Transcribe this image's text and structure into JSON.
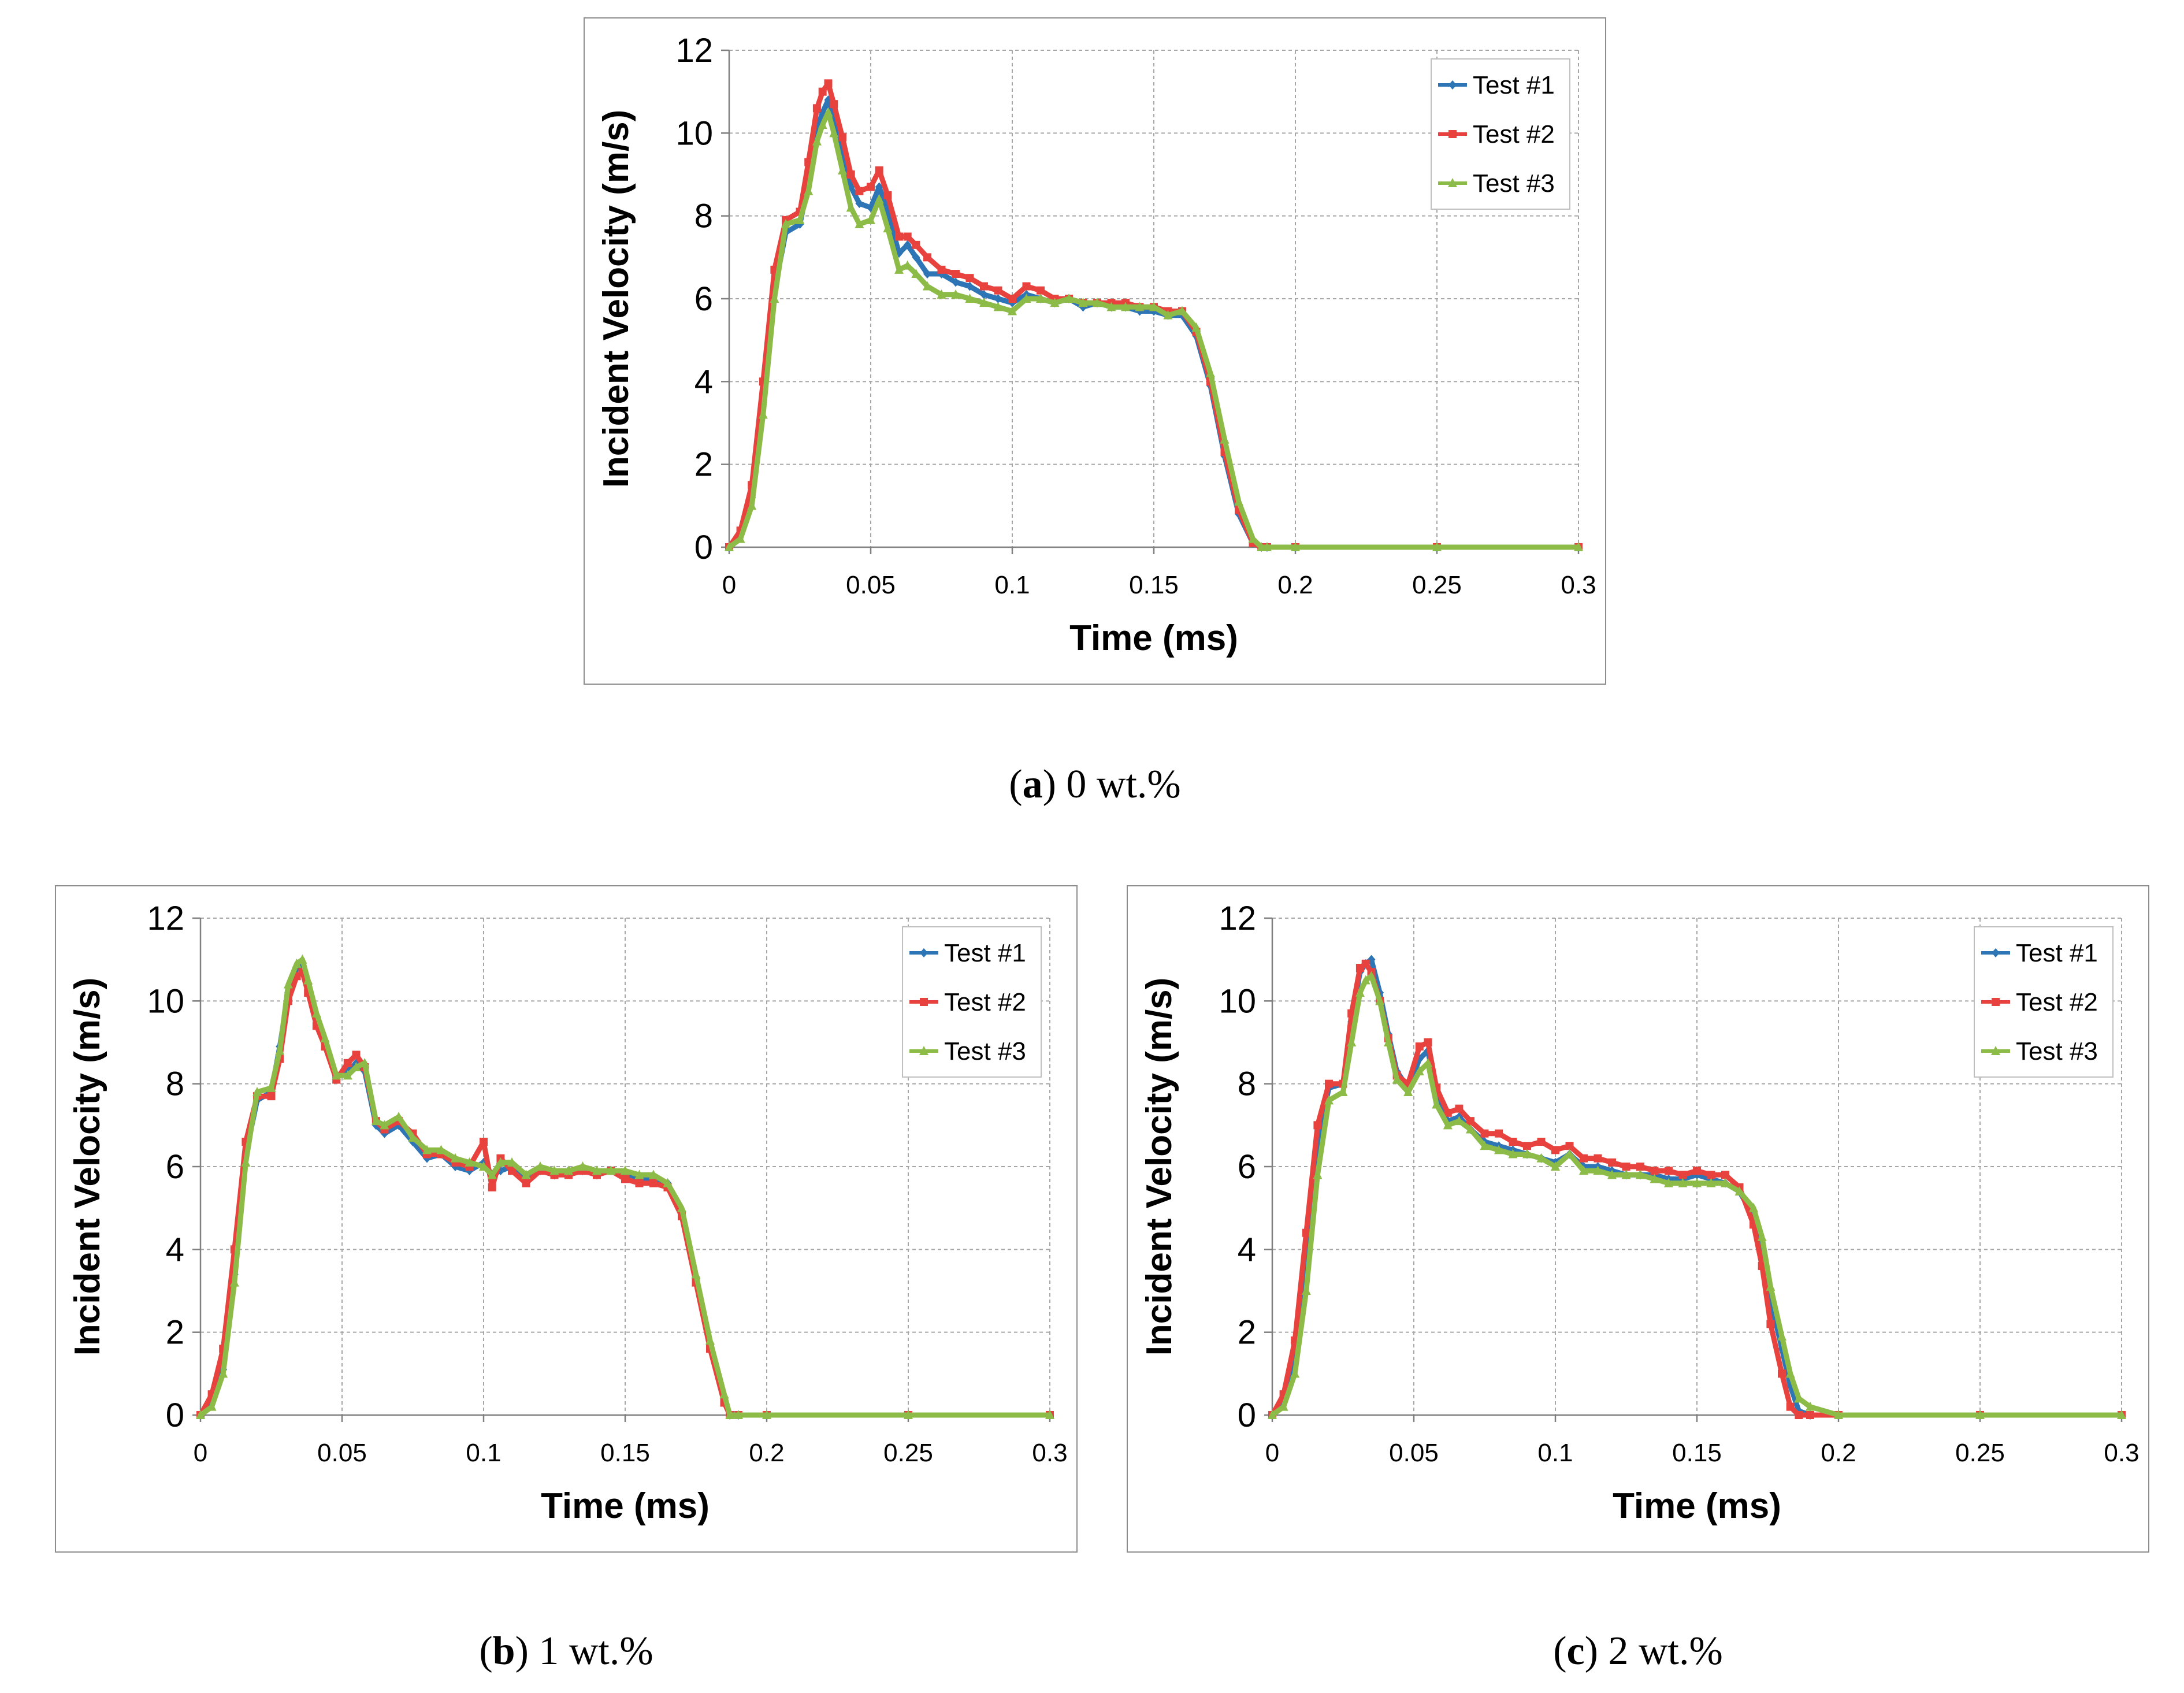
{
  "chart_data": [
    {
      "id": "a",
      "type": "line",
      "caption_letter": "a",
      "caption_text": "0 wt.%",
      "xlabel": "Time (ms)",
      "ylabel": "Incident Velocity (m/s)",
      "xlim": [
        0,
        0.3
      ],
      "ylim": [
        0,
        12
      ],
      "xticks": [
        0,
        0.05,
        0.1,
        0.15,
        0.2,
        0.25,
        0.3
      ],
      "yticks": [
        0,
        2,
        4,
        6,
        8,
        10,
        12
      ],
      "xtick_labels": [
        "0",
        "0.05",
        "0.1",
        "0.15",
        "0.2",
        "0.25",
        "0.3"
      ],
      "ytick_labels": [
        "0",
        "2",
        "4",
        "6",
        "8",
        "10",
        "12"
      ],
      "grid": true,
      "legend_position": "top-right",
      "series": [
        {
          "name": "Test #1",
          "color": "#2E75B6",
          "marker": "diamond",
          "x": [
            0,
            0.004,
            0.008,
            0.012,
            0.016,
            0.02,
            0.025,
            0.028,
            0.031,
            0.033,
            0.035,
            0.037,
            0.04,
            0.043,
            0.046,
            0.05,
            0.053,
            0.056,
            0.06,
            0.063,
            0.066,
            0.07,
            0.075,
            0.08,
            0.085,
            0.09,
            0.095,
            0.1,
            0.105,
            0.11,
            0.115,
            0.12,
            0.125,
            0.13,
            0.135,
            0.14,
            0.145,
            0.15,
            0.155,
            0.16,
            0.165,
            0.17,
            0.175,
            0.18,
            0.185,
            0.188,
            0.19,
            0.2,
            0.25,
            0.3
          ],
          "y": [
            0,
            0.3,
            1.2,
            3.5,
            6.2,
            7.6,
            7.8,
            8.8,
            10.1,
            10.5,
            10.8,
            10.2,
            9.5,
            8.7,
            8.3,
            8.2,
            8.7,
            8.1,
            7.1,
            7.3,
            7.0,
            6.6,
            6.6,
            6.4,
            6.3,
            6.1,
            6.0,
            5.9,
            6.1,
            6.0,
            5.9,
            6.0,
            5.8,
            5.9,
            5.8,
            5.8,
            5.7,
            5.7,
            5.6,
            5.6,
            5.1,
            3.9,
            2.2,
            0.8,
            0.1,
            0,
            0,
            0,
            0,
            0
          ]
        },
        {
          "name": "Test #2",
          "color": "#E8423F",
          "marker": "square",
          "x": [
            0,
            0.004,
            0.008,
            0.012,
            0.016,
            0.02,
            0.025,
            0.028,
            0.031,
            0.033,
            0.035,
            0.037,
            0.04,
            0.043,
            0.046,
            0.05,
            0.053,
            0.056,
            0.06,
            0.063,
            0.066,
            0.07,
            0.075,
            0.08,
            0.085,
            0.09,
            0.095,
            0.1,
            0.105,
            0.11,
            0.115,
            0.12,
            0.125,
            0.13,
            0.135,
            0.14,
            0.145,
            0.15,
            0.155,
            0.16,
            0.165,
            0.17,
            0.175,
            0.18,
            0.185,
            0.188,
            0.19,
            0.2,
            0.25,
            0.3
          ],
          "y": [
            0,
            0.4,
            1.5,
            4.0,
            6.7,
            7.9,
            8.1,
            9.3,
            10.6,
            11.0,
            11.2,
            10.7,
            9.9,
            9.0,
            8.6,
            8.7,
            9.1,
            8.5,
            7.5,
            7.5,
            7.3,
            7.0,
            6.7,
            6.6,
            6.5,
            6.3,
            6.2,
            6.0,
            6.3,
            6.2,
            6.0,
            6.0,
            5.9,
            5.9,
            5.9,
            5.9,
            5.8,
            5.8,
            5.7,
            5.7,
            5.2,
            4.0,
            2.3,
            0.9,
            0.1,
            0,
            0,
            0,
            0,
            0
          ]
        },
        {
          "name": "Test #3",
          "color": "#8DBB47",
          "marker": "triangle",
          "x": [
            0,
            0.004,
            0.008,
            0.012,
            0.016,
            0.02,
            0.025,
            0.028,
            0.031,
            0.033,
            0.035,
            0.037,
            0.04,
            0.043,
            0.046,
            0.05,
            0.053,
            0.056,
            0.06,
            0.063,
            0.066,
            0.07,
            0.075,
            0.08,
            0.085,
            0.09,
            0.095,
            0.1,
            0.105,
            0.11,
            0.115,
            0.12,
            0.125,
            0.13,
            0.135,
            0.14,
            0.145,
            0.15,
            0.155,
            0.16,
            0.165,
            0.17,
            0.175,
            0.18,
            0.185,
            0.188,
            0.19,
            0.2,
            0.25,
            0.3
          ],
          "y": [
            0,
            0.2,
            1.0,
            3.2,
            6.0,
            7.8,
            7.9,
            8.6,
            9.8,
            10.2,
            10.5,
            10.0,
            9.1,
            8.2,
            7.8,
            7.9,
            8.4,
            7.7,
            6.7,
            6.8,
            6.6,
            6.3,
            6.1,
            6.1,
            6.0,
            5.9,
            5.8,
            5.7,
            6.0,
            6.0,
            5.9,
            6.0,
            5.9,
            5.9,
            5.8,
            5.8,
            5.8,
            5.8,
            5.6,
            5.7,
            5.3,
            4.2,
            2.6,
            1.1,
            0.2,
            0,
            0,
            0,
            0,
            0
          ]
        }
      ]
    },
    {
      "id": "b",
      "type": "line",
      "caption_letter": "b",
      "caption_text": "1 wt.%",
      "xlabel": "Time (ms)",
      "ylabel": "Incident Velocity (m/s)",
      "xlim": [
        0,
        0.3
      ],
      "ylim": [
        0,
        12
      ],
      "xticks": [
        0,
        0.05,
        0.1,
        0.15,
        0.2,
        0.25,
        0.3
      ],
      "yticks": [
        0,
        2,
        4,
        6,
        8,
        10,
        12
      ],
      "xtick_labels": [
        "0",
        "0.05",
        "0.1",
        "0.15",
        "0.2",
        "0.25",
        "0.3"
      ],
      "ytick_labels": [
        "0",
        "2",
        "4",
        "6",
        "8",
        "10",
        "12"
      ],
      "grid": true,
      "legend_position": "top-right",
      "series": [
        {
          "name": "Test #1",
          "color": "#2E75B6",
          "marker": "diamond",
          "x": [
            0,
            0.004,
            0.008,
            0.012,
            0.016,
            0.02,
            0.025,
            0.028,
            0.031,
            0.034,
            0.036,
            0.038,
            0.041,
            0.044,
            0.048,
            0.052,
            0.055,
            0.058,
            0.062,
            0.065,
            0.07,
            0.075,
            0.08,
            0.085,
            0.09,
            0.095,
            0.1,
            0.103,
            0.106,
            0.11,
            0.115,
            0.12,
            0.125,
            0.13,
            0.135,
            0.14,
            0.145,
            0.15,
            0.155,
            0.16,
            0.165,
            0.17,
            0.175,
            0.18,
            0.185,
            0.187,
            0.19,
            0.2,
            0.25,
            0.3
          ],
          "y": [
            0,
            0.3,
            1.1,
            3.4,
            6.3,
            7.6,
            7.8,
            8.9,
            10.2,
            10.8,
            10.9,
            10.4,
            9.6,
            9.0,
            8.2,
            8.3,
            8.5,
            8.3,
            7.0,
            6.8,
            7.0,
            6.6,
            6.2,
            6.3,
            6.0,
            5.9,
            6.1,
            5.8,
            5.9,
            6.0,
            5.7,
            5.9,
            5.8,
            5.9,
            5.9,
            5.8,
            5.9,
            5.8,
            5.7,
            5.7,
            5.6,
            4.9,
            3.3,
            1.7,
            0.4,
            0,
            0,
            0,
            0,
            0
          ]
        },
        {
          "name": "Test #2",
          "color": "#E8423F",
          "marker": "square",
          "x": [
            0,
            0.004,
            0.008,
            0.012,
            0.016,
            0.02,
            0.025,
            0.028,
            0.031,
            0.034,
            0.036,
            0.038,
            0.041,
            0.044,
            0.048,
            0.052,
            0.055,
            0.058,
            0.062,
            0.065,
            0.07,
            0.075,
            0.08,
            0.085,
            0.09,
            0.095,
            0.1,
            0.103,
            0.106,
            0.11,
            0.115,
            0.12,
            0.125,
            0.13,
            0.135,
            0.14,
            0.145,
            0.15,
            0.155,
            0.16,
            0.165,
            0.17,
            0.175,
            0.18,
            0.185,
            0.187,
            0.19,
            0.2,
            0.25,
            0.3
          ],
          "y": [
            0,
            0.5,
            1.6,
            4.0,
            6.6,
            7.7,
            7.7,
            8.6,
            10.0,
            10.6,
            10.7,
            10.2,
            9.4,
            8.9,
            8.1,
            8.5,
            8.7,
            8.4,
            7.1,
            6.9,
            7.1,
            6.8,
            6.3,
            6.3,
            6.1,
            6.0,
            6.6,
            5.5,
            6.2,
            5.9,
            5.6,
            5.9,
            5.8,
            5.8,
            5.9,
            5.8,
            5.9,
            5.7,
            5.6,
            5.6,
            5.5,
            4.8,
            3.2,
            1.6,
            0.3,
            0,
            0,
            0,
            0,
            0
          ]
        },
        {
          "name": "Test #3",
          "color": "#8DBB47",
          "marker": "triangle",
          "x": [
            0,
            0.004,
            0.008,
            0.012,
            0.016,
            0.02,
            0.025,
            0.028,
            0.031,
            0.034,
            0.036,
            0.038,
            0.041,
            0.044,
            0.048,
            0.052,
            0.055,
            0.058,
            0.062,
            0.065,
            0.07,
            0.075,
            0.08,
            0.085,
            0.09,
            0.095,
            0.1,
            0.103,
            0.106,
            0.11,
            0.115,
            0.12,
            0.125,
            0.13,
            0.135,
            0.14,
            0.145,
            0.15,
            0.155,
            0.16,
            0.165,
            0.17,
            0.175,
            0.18,
            0.185,
            0.187,
            0.19,
            0.2,
            0.25,
            0.3
          ],
          "y": [
            0,
            0.2,
            1.0,
            3.2,
            6.1,
            7.8,
            7.9,
            8.8,
            10.4,
            10.9,
            11.0,
            10.5,
            9.7,
            9.1,
            8.2,
            8.2,
            8.4,
            8.5,
            7.1,
            7.0,
            7.2,
            6.7,
            6.4,
            6.4,
            6.2,
            6.1,
            6.0,
            5.8,
            6.1,
            6.1,
            5.8,
            6.0,
            5.9,
            5.9,
            6.0,
            5.9,
            5.9,
            5.9,
            5.8,
            5.8,
            5.6,
            5.0,
            3.4,
            1.8,
            0.5,
            0,
            0,
            0,
            0,
            0
          ]
        }
      ]
    },
    {
      "id": "c",
      "type": "line",
      "caption_letter": "c",
      "caption_text": "2 wt.%",
      "xlabel": "Time (ms)",
      "ylabel": "Incident Velocity (m/s)",
      "xlim": [
        0,
        0.3
      ],
      "ylim": [
        0,
        12
      ],
      "xticks": [
        0,
        0.05,
        0.1,
        0.15,
        0.2,
        0.25,
        0.3
      ],
      "yticks": [
        0,
        2,
        4,
        6,
        8,
        10,
        12
      ],
      "xtick_labels": [
        "0",
        "0.05",
        "0.1",
        "0.15",
        "0.2",
        "0.25",
        "0.3"
      ],
      "ytick_labels": [
        "0",
        "2",
        "4",
        "6",
        "8",
        "10",
        "12"
      ],
      "grid": true,
      "legend_position": "top-right",
      "series": [
        {
          "name": "Test #1",
          "color": "#2E75B6",
          "marker": "diamond",
          "x": [
            0,
            0.004,
            0.008,
            0.012,
            0.016,
            0.02,
            0.025,
            0.028,
            0.031,
            0.033,
            0.035,
            0.038,
            0.041,
            0.044,
            0.048,
            0.052,
            0.055,
            0.058,
            0.062,
            0.066,
            0.07,
            0.075,
            0.08,
            0.085,
            0.09,
            0.095,
            0.1,
            0.105,
            0.11,
            0.115,
            0.12,
            0.125,
            0.13,
            0.135,
            0.14,
            0.145,
            0.15,
            0.155,
            0.16,
            0.165,
            0.17,
            0.173,
            0.176,
            0.18,
            0.183,
            0.186,
            0.19,
            0.2,
            0.25,
            0.3
          ],
          "y": [
            0,
            0.4,
            1.4,
            3.8,
            6.6,
            7.9,
            8.0,
            9.5,
            10.7,
            10.9,
            11.0,
            10.2,
            9.2,
            8.3,
            7.9,
            8.6,
            8.8,
            7.7,
            7.1,
            7.2,
            6.9,
            6.6,
            6.5,
            6.4,
            6.3,
            6.2,
            6.1,
            6.3,
            6.0,
            6.0,
            5.9,
            5.8,
            5.8,
            5.8,
            5.7,
            5.7,
            5.8,
            5.7,
            5.6,
            5.4,
            4.8,
            4.0,
            2.8,
            1.6,
            0.7,
            0.1,
            0,
            0,
            0,
            0
          ]
        },
        {
          "name": "Test #2",
          "color": "#E8423F",
          "marker": "square",
          "x": [
            0,
            0.004,
            0.008,
            0.012,
            0.016,
            0.02,
            0.025,
            0.028,
            0.031,
            0.033,
            0.035,
            0.038,
            0.041,
            0.044,
            0.048,
            0.052,
            0.055,
            0.058,
            0.062,
            0.066,
            0.07,
            0.075,
            0.08,
            0.085,
            0.09,
            0.095,
            0.1,
            0.105,
            0.11,
            0.115,
            0.12,
            0.125,
            0.13,
            0.135,
            0.14,
            0.145,
            0.15,
            0.155,
            0.16,
            0.165,
            0.17,
            0.173,
            0.176,
            0.18,
            0.183,
            0.186,
            0.19,
            0.2,
            0.25,
            0.3
          ],
          "y": [
            0,
            0.5,
            1.8,
            4.4,
            7.0,
            8.0,
            8.0,
            9.7,
            10.8,
            10.9,
            10.7,
            10.0,
            9.1,
            8.2,
            8.0,
            8.9,
            9.0,
            7.9,
            7.3,
            7.4,
            7.1,
            6.8,
            6.8,
            6.6,
            6.5,
            6.6,
            6.4,
            6.5,
            6.2,
            6.2,
            6.1,
            6.0,
            6.0,
            5.9,
            5.9,
            5.8,
            5.9,
            5.8,
            5.8,
            5.5,
            4.6,
            3.6,
            2.2,
            1.0,
            0.2,
            0,
            0,
            0,
            0,
            0
          ]
        },
        {
          "name": "Test #3",
          "color": "#8DBB47",
          "marker": "triangle",
          "x": [
            0,
            0.004,
            0.008,
            0.012,
            0.016,
            0.02,
            0.025,
            0.028,
            0.031,
            0.033,
            0.035,
            0.038,
            0.041,
            0.044,
            0.048,
            0.052,
            0.055,
            0.058,
            0.062,
            0.066,
            0.07,
            0.075,
            0.08,
            0.085,
            0.09,
            0.095,
            0.1,
            0.105,
            0.11,
            0.115,
            0.12,
            0.125,
            0.13,
            0.135,
            0.14,
            0.145,
            0.15,
            0.155,
            0.16,
            0.165,
            0.17,
            0.173,
            0.176,
            0.18,
            0.183,
            0.186,
            0.19,
            0.2,
            0.25,
            0.3
          ],
          "y": [
            0,
            0.2,
            1.0,
            3.0,
            5.8,
            7.6,
            7.8,
            9.0,
            10.2,
            10.5,
            10.6,
            10.0,
            9.0,
            8.1,
            7.8,
            8.3,
            8.5,
            7.5,
            7.0,
            7.1,
            6.9,
            6.5,
            6.4,
            6.3,
            6.3,
            6.2,
            6.0,
            6.3,
            5.9,
            5.9,
            5.8,
            5.8,
            5.8,
            5.7,
            5.6,
            5.6,
            5.6,
            5.6,
            5.6,
            5.4,
            5.0,
            4.3,
            3.1,
            1.9,
            1.0,
            0.4,
            0.2,
            0,
            0,
            0
          ]
        }
      ]
    }
  ]
}
